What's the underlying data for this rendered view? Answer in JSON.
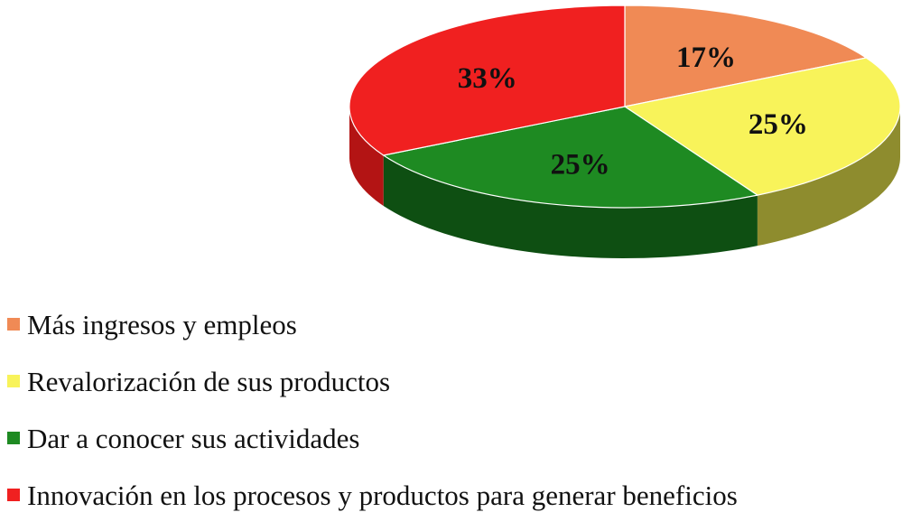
{
  "chart_data": {
    "type": "pie",
    "style": "3d",
    "title": "",
    "legend_position": "bottom-left",
    "slices": [
      {
        "label": "Más ingresos y empleos",
        "value": 17,
        "display": "17%",
        "color": "#F08A55",
        "side_color": "#B86A40"
      },
      {
        "label": "Revalorización de sus productos",
        "value": 25,
        "display": "25%",
        "color": "#F8F35A",
        "side_color": "#8E8C2E"
      },
      {
        "label": "Dar a conocer sus actividades",
        "value": 25,
        "display": "25%",
        "color": "#1E8A22",
        "side_color": "#0E4F12"
      },
      {
        "label": "Innovación en los procesos y productos para generar beneficios",
        "value": 33,
        "display": "33%",
        "color": "#F02020",
        "side_color": "#B31414"
      }
    ]
  }
}
